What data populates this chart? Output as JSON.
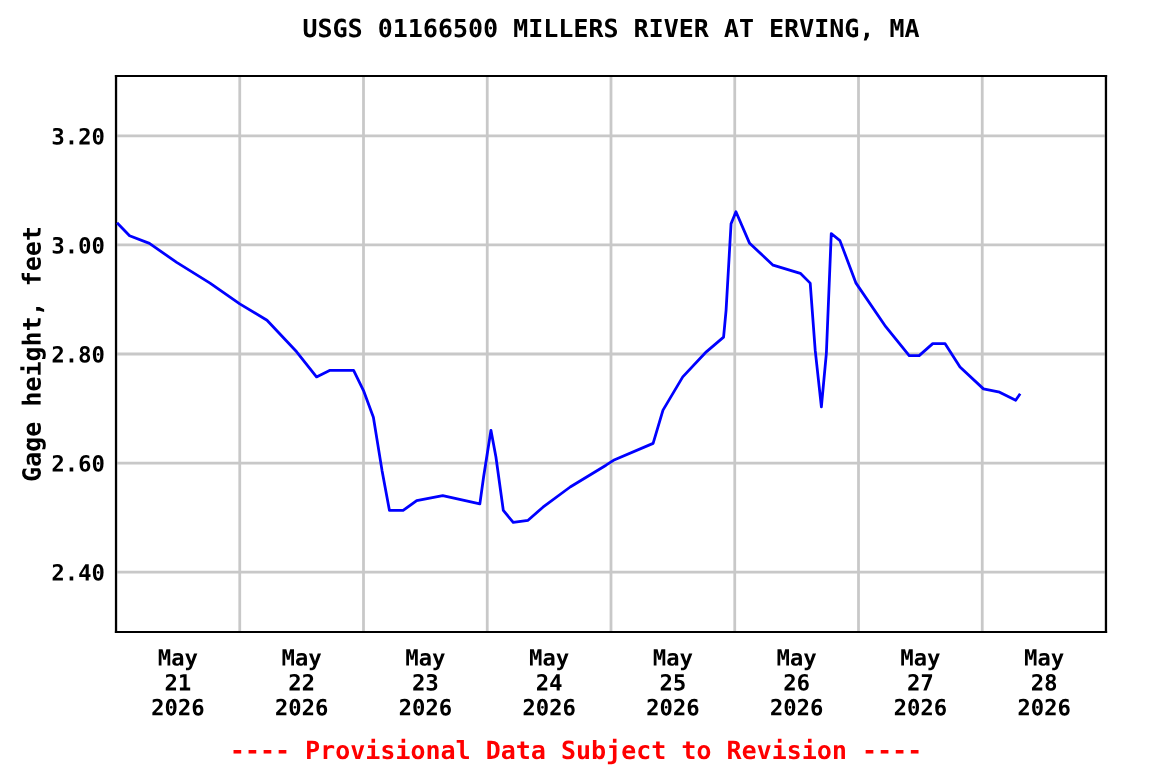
{
  "chart_data": {
    "type": "line",
    "title": "USGS 01166500 MILLERS RIVER AT ERVING, MA",
    "ylabel": "Gage height, feet",
    "annotations": [
      "---- Provisional Data Subject to Revision ----"
    ],
    "x": [
      "2026-05-21T00:23",
      "2026-05-21T02:38",
      "2026-05-21T06:29",
      "2026-05-21T11:46",
      "2026-05-21T18:14",
      "2026-05-22T00:00",
      "2026-05-22T05:17",
      "2026-05-22T11:02",
      "2026-05-22T14:53",
      "2026-05-22T17:31",
      "2026-05-22T22:05",
      "2026-05-23T00:00",
      "2026-05-23T01:55",
      "2026-05-23T03:36",
      "2026-05-23T05:02",
      "2026-05-23T07:41",
      "2026-05-23T10:19",
      "2026-05-23T15:22",
      "2026-05-23T22:34",
      "2026-05-23T23:17",
      "2026-05-24T00:43",
      "2026-05-24T01:41",
      "2026-05-24T03:07",
      "2026-05-24T05:02",
      "2026-05-24T07:55",
      "2026-05-24T10:48",
      "2026-05-24T16:05",
      "2026-05-24T23:02",
      "2026-05-25T00:29",
      "2026-05-25T08:10",
      "2026-05-25T10:05",
      "2026-05-25T13:55",
      "2026-05-25T18:29",
      "2026-05-25T21:50",
      "2026-05-25T22:19",
      "2026-05-25T23:17",
      "2026-05-26T00:14",
      "2026-05-26T02:53",
      "2026-05-26T07:26",
      "2026-05-26T12:43",
      "2026-05-26T14:38",
      "2026-05-26T15:36",
      "2026-05-26T16:48",
      "2026-05-26T17:46",
      "2026-05-26T18:43",
      "2026-05-26T20:24",
      "2026-05-26T23:31",
      "2026-05-27T05:17",
      "2026-05-27T09:50",
      "2026-05-27T11:46",
      "2026-05-27T14:24",
      "2026-05-27T16:48",
      "2026-05-27T19:41",
      "2026-05-28T00:14",
      "2026-05-28T03:22",
      "2026-05-28T06:29",
      "2026-05-28T07:12"
    ],
    "series": [
      {
        "color": "#0000ff",
        "values": [
          3.039,
          3.017,
          3.003,
          2.968,
          2.93,
          2.892,
          2.862,
          2.804,
          2.758,
          2.77,
          2.77,
          2.733,
          2.684,
          2.586,
          2.513,
          2.513,
          2.531,
          2.54,
          2.525,
          2.574,
          2.66,
          2.611,
          2.513,
          2.491,
          2.495,
          2.519,
          2.556,
          2.596,
          2.605,
          2.636,
          2.697,
          2.758,
          2.804,
          2.831,
          2.88,
          3.039,
          3.061,
          3.003,
          2.963,
          2.948,
          2.93,
          2.807,
          2.703,
          2.801,
          3.021,
          3.008,
          2.93,
          2.85,
          2.797,
          2.797,
          2.819,
          2.819,
          2.776,
          2.736,
          2.73,
          2.715,
          2.725
        ]
      }
    ],
    "xlim": [
      "2026-05-21",
      "2026-05-29"
    ],
    "xticks": [
      {
        "value": "2026-05-21",
        "label": null
      },
      {
        "value": "2026-05-21T12:00",
        "label": "May\n21\n2026"
      },
      {
        "value": "2026-05-22",
        "label": null
      },
      {
        "value": "2026-05-22T12:00",
        "label": "May\n22\n2026"
      },
      {
        "value": "2026-05-23",
        "label": null
      },
      {
        "value": "2026-05-23T12:00",
        "label": "May\n23\n2026"
      },
      {
        "value": "2026-05-24",
        "label": null
      },
      {
        "value": "2026-05-24T12:00",
        "label": "May\n24\n2026"
      },
      {
        "value": "2026-05-25",
        "label": null
      },
      {
        "value": "2026-05-25T12:00",
        "label": "May\n25\n2026"
      },
      {
        "value": "2026-05-26",
        "label": null
      },
      {
        "value": "2026-05-26T12:00",
        "label": "May\n26\n2026"
      },
      {
        "value": "2026-05-27",
        "label": null
      },
      {
        "value": "2026-05-27T12:00",
        "label": "May\n27\n2026"
      },
      {
        "value": "2026-05-28",
        "label": null
      },
      {
        "value": "2026-05-28T12:00",
        "label": "May\n28\n2026"
      },
      {
        "value": "2026-05-29",
        "label": null
      }
    ],
    "ylim": [
      2.29,
      3.31
    ],
    "yticks": [
      {
        "value": 2.4,
        "label": "2.40"
      },
      {
        "value": 2.6,
        "label": "2.60"
      },
      {
        "value": 2.8,
        "label": "2.80"
      },
      {
        "value": 3.0,
        "label": "3.00"
      },
      {
        "value": 3.2,
        "label": "3.20"
      }
    ],
    "grid": true,
    "line_style": "solid"
  }
}
